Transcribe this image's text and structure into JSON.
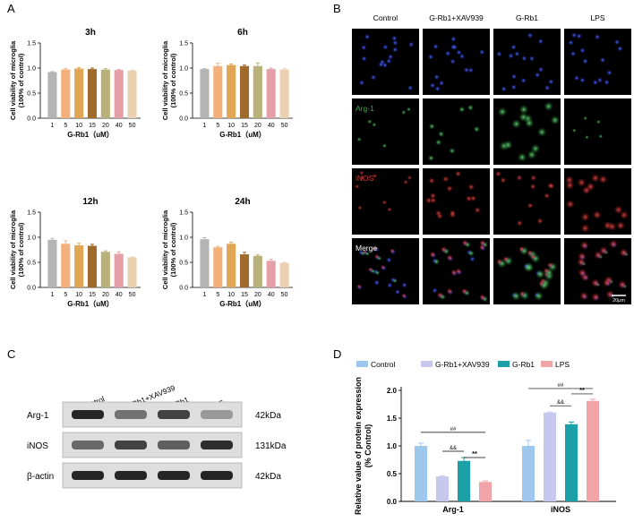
{
  "colors": {
    "dose": [
      "#b4b4b4",
      "#f4b07a",
      "#e0a655",
      "#a06a2c",
      "#b8b27a",
      "#e4a0a6",
      "#ead0b0"
    ],
    "group": [
      "#9ec7ee",
      "#c8c8ef",
      "#1aa0a6",
      "#f0a4a8"
    ],
    "dapi": "#2a3fd0",
    "arg1": "#3aa850",
    "inos": "#d83030"
  },
  "panel_letters": {
    "a": "A",
    "b": "B",
    "c": "C",
    "d": "D"
  },
  "panel_a": {
    "ylabel_line1": "Cell viability of microglia",
    "ylabel_line2": "(100% of control)",
    "xlabel": "G-Rb1（uM）"
  },
  "chart_data": [
    {
      "type": "bar",
      "title": "3h",
      "categories": [
        "1",
        "5",
        "10",
        "15",
        "20",
        "40",
        "50"
      ],
      "values": [
        0.92,
        0.97,
        0.99,
        0.98,
        0.97,
        0.96,
        0.95
      ],
      "errors": [
        0.01,
        0.02,
        0.02,
        0.02,
        0.02,
        0.01,
        0.01
      ],
      "ylim": [
        0,
        1.5
      ],
      "yticks": [
        "0.0",
        "0.5",
        "1.0",
        "1.5"
      ],
      "xlabel": "G-Rb1（uM）",
      "ylabel": "Cell viability of microglia (100% of control)"
    },
    {
      "type": "bar",
      "title": "6h",
      "categories": [
        "1",
        "5",
        "10",
        "15",
        "20",
        "40",
        "50"
      ],
      "values": [
        0.98,
        1.04,
        1.06,
        1.04,
        1.04,
        0.98,
        0.97
      ],
      "errors": [
        0.01,
        0.06,
        0.02,
        0.02,
        0.06,
        0.02,
        0.02
      ],
      "ylim": [
        0,
        1.5
      ],
      "yticks": [
        "0.0",
        "0.5",
        "1.0",
        "1.5"
      ],
      "xlabel": "G-Rb1（uM）",
      "ylabel": "Cell viability of microglia (100% of control)"
    },
    {
      "type": "bar",
      "title": "12h",
      "categories": [
        "1",
        "5",
        "10",
        "15",
        "20",
        "40",
        "50"
      ],
      "values": [
        0.95,
        0.87,
        0.84,
        0.83,
        0.71,
        0.67,
        0.6
      ],
      "errors": [
        0.03,
        0.06,
        0.04,
        0.03,
        0.02,
        0.04,
        0.01
      ],
      "ylim": [
        0,
        1.5
      ],
      "yticks": [
        "0.0",
        "0.5",
        "1.0",
        "1.5"
      ],
      "xlabel": "G-Rb1（uM）",
      "ylabel": "Cell viability of microglia (100% of control)"
    },
    {
      "type": "bar",
      "title": "24h",
      "categories": [
        "1",
        "5",
        "10",
        "15",
        "20",
        "40",
        "50"
      ],
      "values": [
        0.96,
        0.8,
        0.87,
        0.66,
        0.63,
        0.53,
        0.49
      ],
      "errors": [
        0.03,
        0.02,
        0.03,
        0.04,
        0.02,
        0.03,
        0.01
      ],
      "ylim": [
        0,
        1.5
      ],
      "yticks": [
        "0.0",
        "0.5",
        "1.0",
        "1.5"
      ],
      "xlabel": "G-Rb1（uM）",
      "ylabel": "Cell viability of microglia (100% of control)"
    },
    {
      "type": "bar",
      "title": "",
      "categories": [
        "Arg-1",
        "iNOS"
      ],
      "series": [
        {
          "name": "Control",
          "values": [
            1.0,
            1.0
          ],
          "errors": [
            0.05,
            0.1
          ]
        },
        {
          "name": "G-Rb1+XAV939",
          "values": [
            0.45,
            1.6
          ],
          "errors": [
            0.01,
            0.01
          ]
        },
        {
          "name": "G-Rb1",
          "values": [
            0.73,
            1.39
          ],
          "errors": [
            0.06,
            0.04
          ]
        },
        {
          "name": "LPS",
          "values": [
            0.35,
            1.81
          ],
          "errors": [
            0.02,
            0.03
          ]
        }
      ],
      "ylim": [
        0,
        2.0
      ],
      "yticks": [
        "0.0",
        "0.5",
        "1.0",
        "1.5",
        "2.0"
      ],
      "ylabel": "Relative value of protein expression (% Control)",
      "annotations": {
        "arg1": [
          "##",
          "&&",
          "**"
        ],
        "inos": [
          "##",
          "&&",
          "**"
        ]
      }
    }
  ],
  "panel_b": {
    "columns": [
      "Control",
      "G-Rb1+XAV939",
      "G-Rb1",
      "LPS"
    ],
    "row_labels": [
      "",
      "Arg-1",
      "iNOS",
      "Merge"
    ],
    "scale_bar": "20μm"
  },
  "panel_c": {
    "lanes": [
      "Control",
      "G-Rb1+XAV939",
      "G-Rb1",
      "LPS"
    ],
    "proteins": [
      "Arg-1",
      "iNOS",
      "β-actin"
    ],
    "sizes": [
      "42kDa",
      "131kDa",
      "42kDa"
    ],
    "band_intensity": [
      [
        0.95,
        0.55,
        0.8,
        0.35
      ],
      [
        0.6,
        0.8,
        0.65,
        0.9
      ],
      [
        0.95,
        0.95,
        0.95,
        0.95
      ]
    ]
  },
  "panel_d": {
    "ylabel_line1": "Relative value of protein expression",
    "ylabel_line2": "(% Control)"
  }
}
